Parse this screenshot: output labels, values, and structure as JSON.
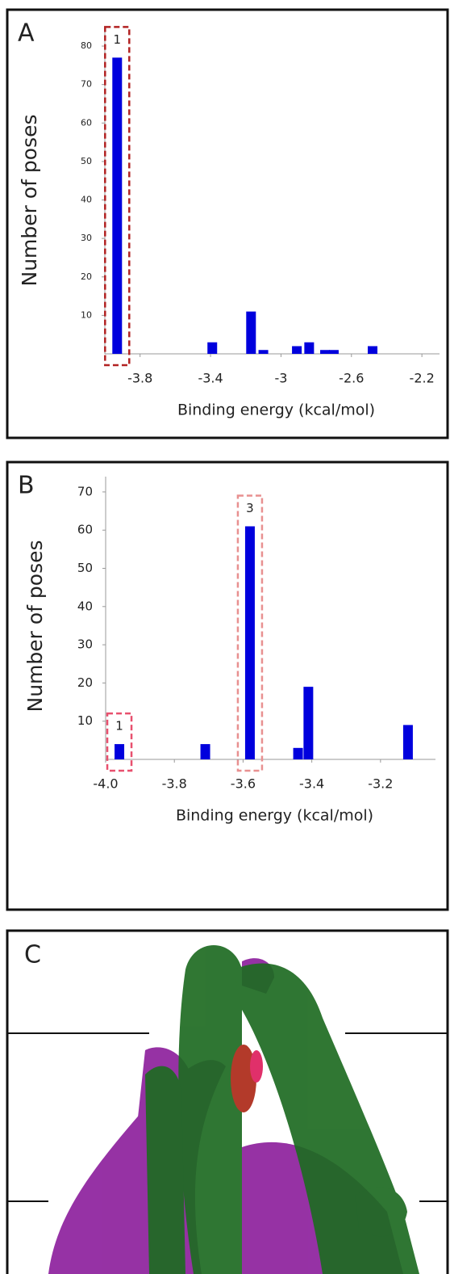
{
  "chart_data": [
    {
      "type": "bar",
      "panel": "A",
      "ylabel": "Number of poses",
      "xlabel": "Binding energy (kcal/mol)",
      "color": "#0000dd",
      "x": [
        -3.93,
        -3.39,
        -3.17,
        -3.1,
        -2.91,
        -2.84,
        -2.75,
        -2.7,
        -2.48
      ],
      "values": [
        77,
        3,
        11,
        1,
        2,
        3,
        1,
        1,
        2
      ],
      "xlim": [
        -4.0,
        -2.1
      ],
      "ylim": [
        0,
        84
      ],
      "xticks": [
        -3.8,
        -3.4,
        -3.0,
        -2.6,
        -2.2
      ],
      "yticks": [
        10,
        20,
        30,
        40,
        50,
        60,
        70,
        80
      ],
      "annotations": [
        {
          "text": "1",
          "x": -3.93,
          "color": "#b22222"
        }
      ]
    },
    {
      "type": "bar",
      "panel": "B",
      "ylabel": "Number of poses",
      "xlabel": "Binding energy (kcal/mol)",
      "color": "#0000dd",
      "x": [
        -3.96,
        -3.71,
        -3.58,
        -3.44,
        -3.41,
        -3.12
      ],
      "values": [
        4,
        4,
        61,
        3,
        19,
        9
      ],
      "xlim": [
        -4.0,
        -3.04
      ],
      "ylim": [
        0,
        74
      ],
      "xticks": [
        {
          "value": -4.0,
          "label": "-4.0"
        },
        -3.8,
        -3.6,
        -3.4,
        -3.2
      ],
      "yticks": [
        10,
        20,
        30,
        40,
        50,
        60,
        70
      ],
      "annotations": [
        {
          "text": "1",
          "x": -3.96,
          "color": "#e8506e"
        },
        {
          "text": "3",
          "x": -3.58,
          "color": "#e89090"
        }
      ]
    }
  ],
  "panel_c": {
    "label": "C"
  }
}
